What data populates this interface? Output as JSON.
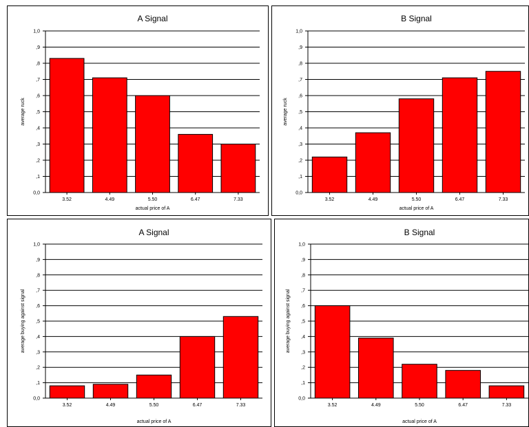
{
  "colors": {
    "bar": "#ff0000",
    "bar_stroke": "#000000",
    "grid": "#000000"
  },
  "chart_data": [
    {
      "type": "bar",
      "title": "A Signal",
      "xlabel": "actual price of A",
      "ylabel": "average ruck",
      "categories": [
        "3.52",
        "4.49",
        "5.50",
        "6.47",
        "7.33"
      ],
      "values": [
        0.83,
        0.71,
        0.6,
        0.36,
        0.3
      ],
      "ylim": [
        0,
        1.0
      ],
      "yticks": [
        "0,0",
        ",1",
        ",2",
        ",3",
        ",4",
        ",5",
        ",6",
        ",7",
        ",8",
        ",9",
        "1,0"
      ],
      "grid": true
    },
    {
      "type": "bar",
      "title": "B Signal",
      "xlabel": "actual price of A",
      "ylabel": "average ruck",
      "categories": [
        "3.52",
        "4.49",
        "5.50",
        "6.47",
        "7.33"
      ],
      "values": [
        0.22,
        0.37,
        0.58,
        0.71,
        0.75
      ],
      "ylim": [
        0,
        1.0
      ],
      "yticks": [
        "0,0",
        ",1",
        ",2",
        ",3",
        ",4",
        ",5",
        ",6",
        ",7",
        ",8",
        ",9",
        "1,0"
      ],
      "grid": true
    },
    {
      "type": "bar",
      "title": "A Signal",
      "xlabel": "actual price of A",
      "ylabel": "average buying against signal",
      "categories": [
        "3.52",
        "4.49",
        "5.50",
        "6.47",
        "7.33"
      ],
      "values": [
        0.08,
        0.09,
        0.15,
        0.4,
        0.53
      ],
      "ylim": [
        0,
        1.0
      ],
      "yticks": [
        "0,0",
        ",1",
        ",2",
        ",3",
        ",4",
        ",5",
        ",6",
        ",7",
        ",8",
        ",9",
        "1,0"
      ],
      "grid": true
    },
    {
      "type": "bar",
      "title": "B Signal",
      "xlabel": "actual price of A",
      "ylabel": "average buying against signal",
      "categories": [
        "3.52",
        "4.49",
        "5.50",
        "6.47",
        "7.33"
      ],
      "values": [
        0.6,
        0.39,
        0.22,
        0.18,
        0.08
      ],
      "ylim": [
        0,
        1.0
      ],
      "yticks": [
        "0,0",
        ",1",
        ",2",
        ",3",
        ",4",
        ",5",
        ",6",
        ",7",
        ",8",
        ",9",
        "1,0"
      ],
      "grid": true
    }
  ]
}
